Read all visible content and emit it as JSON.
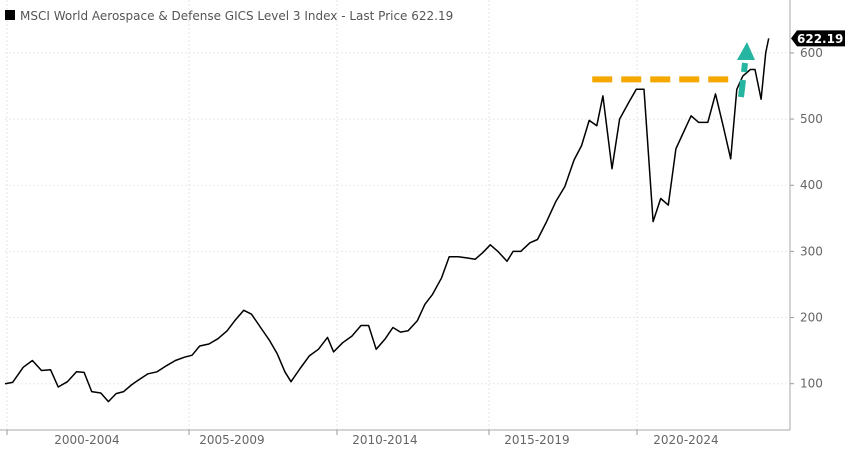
{
  "chart_data": {
    "type": "line",
    "title": "",
    "legend": {
      "position": "top-left",
      "entries": [
        "MSCI World Aerospace & Defense GICS Level 3 Index - Last Price 622.19"
      ]
    },
    "last_price_label": "622.19",
    "xlabel": "",
    "ylabel": "",
    "x_tick_labels": [
      "2000-2004",
      "2005-2009",
      "2010-2014",
      "2015-2019",
      "2020-2024"
    ],
    "y_ticks": [
      100,
      200,
      300,
      400,
      500,
      600
    ],
    "ylim": [
      30,
      680
    ],
    "xlim": [
      0,
      25.8
    ],
    "grid": true,
    "y_axis_side": "right",
    "line_color": "#000000",
    "resistance_level": {
      "value": 560,
      "from": 19.3,
      "to": 24.0,
      "color": "#F5A800",
      "style": "dashed"
    },
    "up_arrow": {
      "color": "#26B5A0"
    },
    "series": [
      {
        "values": [
          [
            0.0,
            100
          ],
          [
            0.25,
            102
          ],
          [
            0.6,
            125
          ],
          [
            0.9,
            135
          ],
          [
            1.2,
            120
          ],
          [
            1.5,
            121
          ],
          [
            1.75,
            95
          ],
          [
            2.05,
            103
          ],
          [
            2.35,
            118
          ],
          [
            2.6,
            117
          ],
          [
            2.85,
            88
          ],
          [
            3.15,
            86
          ],
          [
            3.4,
            73
          ],
          [
            3.65,
            85
          ],
          [
            3.9,
            88
          ],
          [
            4.15,
            98
          ],
          [
            4.4,
            106
          ],
          [
            4.7,
            115
          ],
          [
            5.0,
            118
          ],
          [
            5.3,
            127
          ],
          [
            5.6,
            135
          ],
          [
            5.9,
            140
          ],
          [
            6.15,
            143
          ],
          [
            6.4,
            157
          ],
          [
            6.7,
            160
          ],
          [
            7.0,
            168
          ],
          [
            7.3,
            180
          ],
          [
            7.55,
            195
          ],
          [
            7.85,
            211
          ],
          [
            8.1,
            205
          ],
          [
            8.4,
            185
          ],
          [
            8.7,
            165
          ],
          [
            8.95,
            145
          ],
          [
            9.2,
            118
          ],
          [
            9.4,
            103
          ],
          [
            9.7,
            123
          ],
          [
            10.0,
            142
          ],
          [
            10.3,
            152
          ],
          [
            10.6,
            170
          ],
          [
            10.8,
            148
          ],
          [
            11.1,
            162
          ],
          [
            11.4,
            172
          ],
          [
            11.7,
            188
          ],
          [
            11.95,
            188
          ],
          [
            12.2,
            152
          ],
          [
            12.5,
            168
          ],
          [
            12.75,
            185
          ],
          [
            13.0,
            178
          ],
          [
            13.25,
            180
          ],
          [
            13.55,
            195
          ],
          [
            13.8,
            220
          ],
          [
            14.05,
            235
          ],
          [
            14.35,
            260
          ],
          [
            14.6,
            292
          ],
          [
            14.9,
            292
          ],
          [
            15.2,
            290
          ],
          [
            15.45,
            288
          ],
          [
            15.7,
            298
          ],
          [
            15.95,
            310
          ],
          [
            16.2,
            300
          ],
          [
            16.5,
            285
          ],
          [
            16.7,
            300
          ],
          [
            16.95,
            300
          ],
          [
            17.25,
            313
          ],
          [
            17.5,
            318
          ],
          [
            17.8,
            345
          ],
          [
            18.1,
            375
          ],
          [
            18.4,
            398
          ],
          [
            18.7,
            438
          ],
          [
            18.95,
            460
          ],
          [
            19.2,
            498
          ],
          [
            19.45,
            490
          ],
          [
            19.65,
            535
          ],
          [
            19.95,
            425
          ],
          [
            20.2,
            500
          ],
          [
            20.5,
            525
          ],
          [
            20.75,
            545
          ],
          [
            21.0,
            545
          ],
          [
            21.3,
            345
          ],
          [
            21.55,
            380
          ],
          [
            21.8,
            370
          ],
          [
            22.05,
            455
          ],
          [
            22.35,
            485
          ],
          [
            22.55,
            505
          ],
          [
            22.8,
            495
          ],
          [
            23.1,
            495
          ],
          [
            23.35,
            538
          ],
          [
            23.6,
            490
          ],
          [
            23.85,
            440
          ],
          [
            24.05,
            545
          ],
          [
            24.25,
            565
          ],
          [
            24.5,
            575
          ],
          [
            24.65,
            575
          ],
          [
            24.85,
            530
          ],
          [
            25.0,
            600
          ],
          [
            25.1,
            622
          ]
        ]
      }
    ]
  }
}
